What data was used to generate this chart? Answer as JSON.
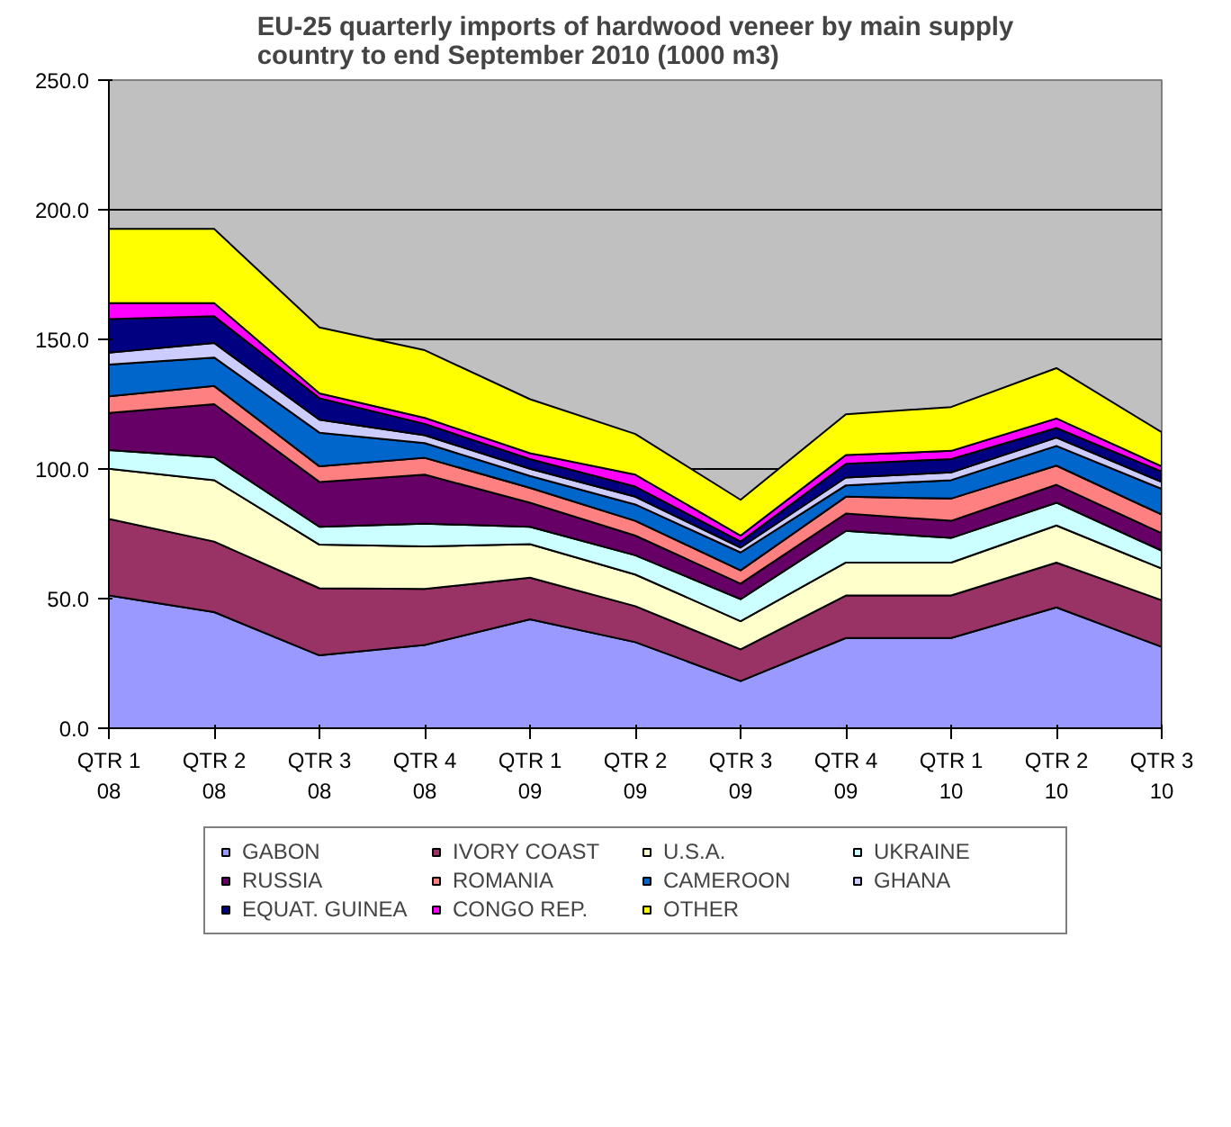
{
  "chart_data": {
    "type": "area",
    "stacked": true,
    "title": "EU-25 quarterly imports of hardwood veneer by main supply\ncountry to end September 2010 (1000 m3)",
    "categories": [
      "QTR 1\n08",
      "QTR 2\n08",
      "QTR 3\n08",
      "QTR 4\n08",
      "QTR 1\n09",
      "QTR 2\n09",
      "QTR 3\n09",
      "QTR 4\n09",
      "QTR 1\n10",
      "QTR 2\n10",
      "QTR 3\n10"
    ],
    "ylim": [
      0,
      250
    ],
    "yticks": [
      {
        "value": 0,
        "label": "0.0"
      },
      {
        "value": 50,
        "label": "50.0"
      },
      {
        "value": 100,
        "label": "100.0"
      },
      {
        "value": 150,
        "label": "150.0"
      },
      {
        "value": 200,
        "label": "200.0"
      },
      {
        "value": 250,
        "label": "250.0"
      }
    ],
    "grid": "y",
    "legend": "bottom",
    "series": [
      {
        "name": "GABON",
        "color": "#9999ff",
        "values": [
          51.2,
          44.8,
          28.1,
          32.1,
          42.0,
          33.2,
          18.2,
          34.8,
          34.8,
          46.6,
          31.4
        ]
      },
      {
        "name": "IVORY COAST",
        "color": "#993366",
        "values": [
          29.5,
          27.2,
          25.9,
          21.6,
          16.1,
          13.9,
          12.2,
          16.4,
          16.4,
          17.3,
          18.0
        ]
      },
      {
        "name": "U.S.A.",
        "color": "#ffffcc",
        "values": [
          19.4,
          23.7,
          16.8,
          16.4,
          12.9,
          12.2,
          10.9,
          12.7,
          12.7,
          14.3,
          12.2
        ]
      },
      {
        "name": "UKRAINE",
        "color": "#ccffff",
        "values": [
          7.2,
          8.8,
          6.9,
          8.8,
          6.7,
          7.4,
          8.5,
          12.2,
          9.5,
          8.8,
          6.9
        ]
      },
      {
        "name": "RUSSIA",
        "color": "#660066",
        "values": [
          14.3,
          20.5,
          17.3,
          18.9,
          9.3,
          7.6,
          6.0,
          6.7,
          6.6,
          6.9,
          6.7
        ]
      },
      {
        "name": "ROMANIA",
        "color": "#ff8080",
        "values": [
          6.4,
          7.0,
          6.0,
          6.5,
          5.7,
          5.7,
          5.1,
          6.5,
          8.6,
          7.4,
          7.2
        ]
      },
      {
        "name": "CAMEROON",
        "color": "#0066cc",
        "values": [
          12.3,
          11.0,
          13.0,
          5.7,
          4.6,
          6.3,
          6.9,
          4.4,
          7.1,
          7.6,
          9.9
        ]
      },
      {
        "name": "GHANA",
        "color": "#ccccff",
        "values": [
          4.6,
          5.6,
          5.0,
          3.0,
          2.8,
          3.0,
          1.9,
          3.0,
          3.0,
          3.2,
          2.7
        ]
      },
      {
        "name": "EQUAT. GUINEA",
        "color": "#000080",
        "values": [
          12.9,
          10.3,
          8.3,
          4.4,
          3.7,
          3.9,
          2.3,
          5.3,
          5.1,
          3.7,
          4.0
        ]
      },
      {
        "name": "CONGO REP.",
        "color": "#ff00ff",
        "values": [
          6.2,
          5.1,
          1.9,
          2.3,
          2.3,
          4.6,
          2.3,
          3.4,
          3.2,
          3.7,
          2.0
        ]
      },
      {
        "name": "OTHER",
        "color": "#ffff00",
        "values": [
          28.6,
          28.6,
          25.4,
          26.1,
          20.8,
          15.7,
          13.8,
          15.7,
          16.9,
          19.4,
          13.2
        ]
      }
    ]
  }
}
